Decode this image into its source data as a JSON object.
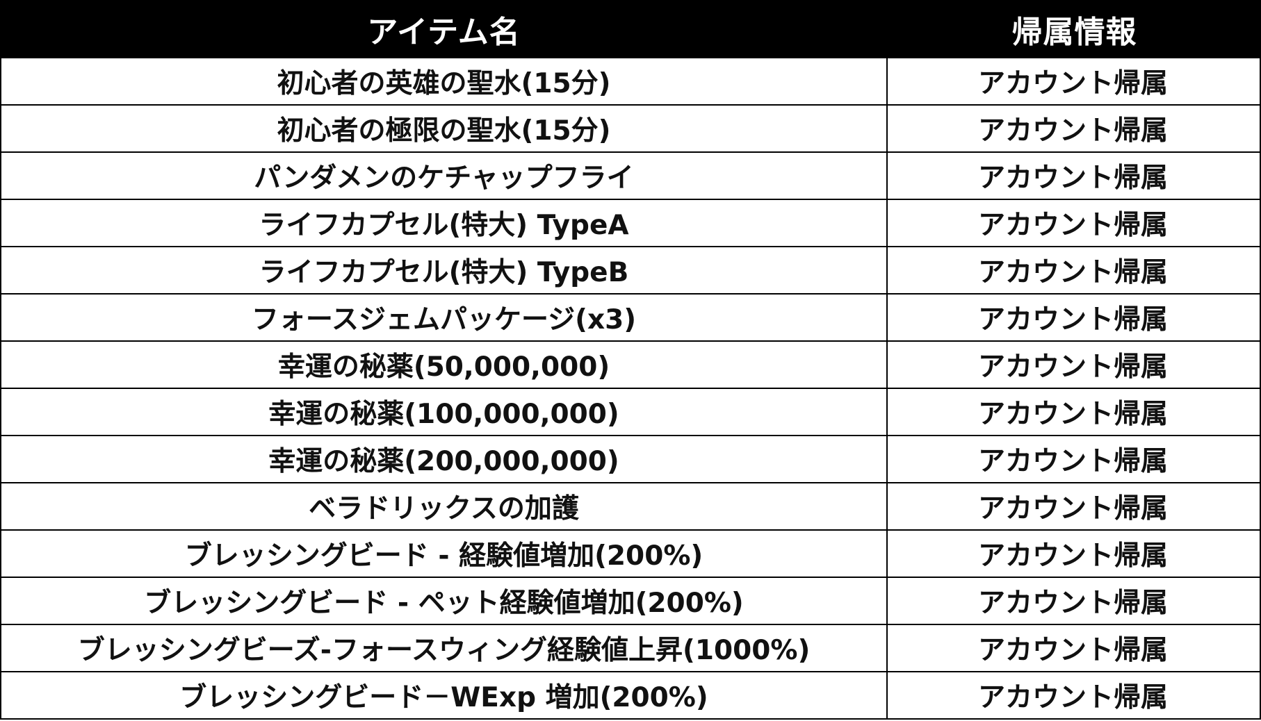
{
  "header": {
    "item_name": "アイテム名",
    "binding": "帰属情報"
  },
  "rows": [
    {
      "name": "初心者の英雄の聖水(15分)",
      "binding": "アカウント帰属"
    },
    {
      "name": "初心者の極限の聖水(15分)",
      "binding": "アカウント帰属"
    },
    {
      "name": "パンダメンのケチャップフライ",
      "binding": "アカウント帰属"
    },
    {
      "name": "ライフカプセル(特大) TypeA",
      "binding": "アカウント帰属"
    },
    {
      "name": "ライフカプセル(特大) TypeB",
      "binding": "アカウント帰属"
    },
    {
      "name": "フォースジェムパッケージ(x3)",
      "binding": "アカウント帰属"
    },
    {
      "name": "幸運の秘薬(50,000,000)",
      "binding": "アカウント帰属"
    },
    {
      "name": "幸運の秘薬(100,000,000)",
      "binding": "アカウント帰属"
    },
    {
      "name": "幸運の秘薬(200,000,000)",
      "binding": "アカウント帰属"
    },
    {
      "name": "ベラドリックスの加護",
      "binding": "アカウント帰属"
    },
    {
      "name": "ブレッシングビード - 経験値増加(200%)",
      "binding": "アカウント帰属"
    },
    {
      "name": "ブレッシングビード - ペット経験値増加(200%)",
      "binding": "アカウント帰属"
    },
    {
      "name": "ブレッシングビーズ-フォースウィング経験値上昇(1000%)",
      "binding": "アカウント帰属"
    },
    {
      "name": "ブレッシングビード－WExp 増加(200%)",
      "binding": "アカウント帰属"
    }
  ]
}
